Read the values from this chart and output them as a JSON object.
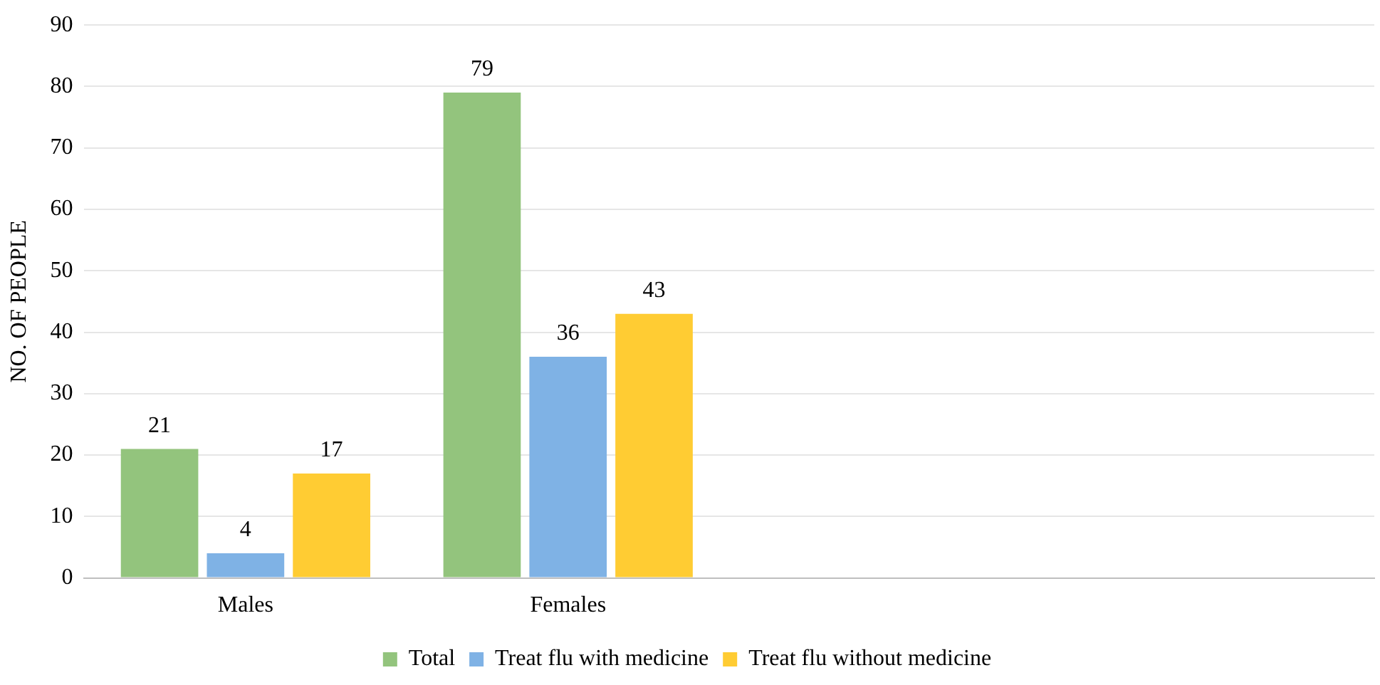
{
  "chart_data": {
    "type": "bar",
    "ylabel": "NO. OF PEOPLE",
    "categories": [
      "Males",
      "Females",
      null,
      null
    ],
    "series": [
      {
        "name": "Total",
        "color": "#93c47d",
        "values": [
          21,
          79,
          null,
          null
        ]
      },
      {
        "name": "Treat flu with medicine",
        "color": "#7fb2e5",
        "values": [
          4,
          36,
          null,
          null
        ]
      },
      {
        "name": "Treat flu without medicine",
        "color": "#ffcc33",
        "values": [
          17,
          43,
          null,
          null
        ]
      }
    ],
    "ylim": [
      0,
      90
    ],
    "yticks": [
      0,
      10,
      20,
      30,
      40,
      50,
      60,
      70,
      80,
      90
    ],
    "grid": "y",
    "legend": "bottom",
    "data_labels": true
  }
}
